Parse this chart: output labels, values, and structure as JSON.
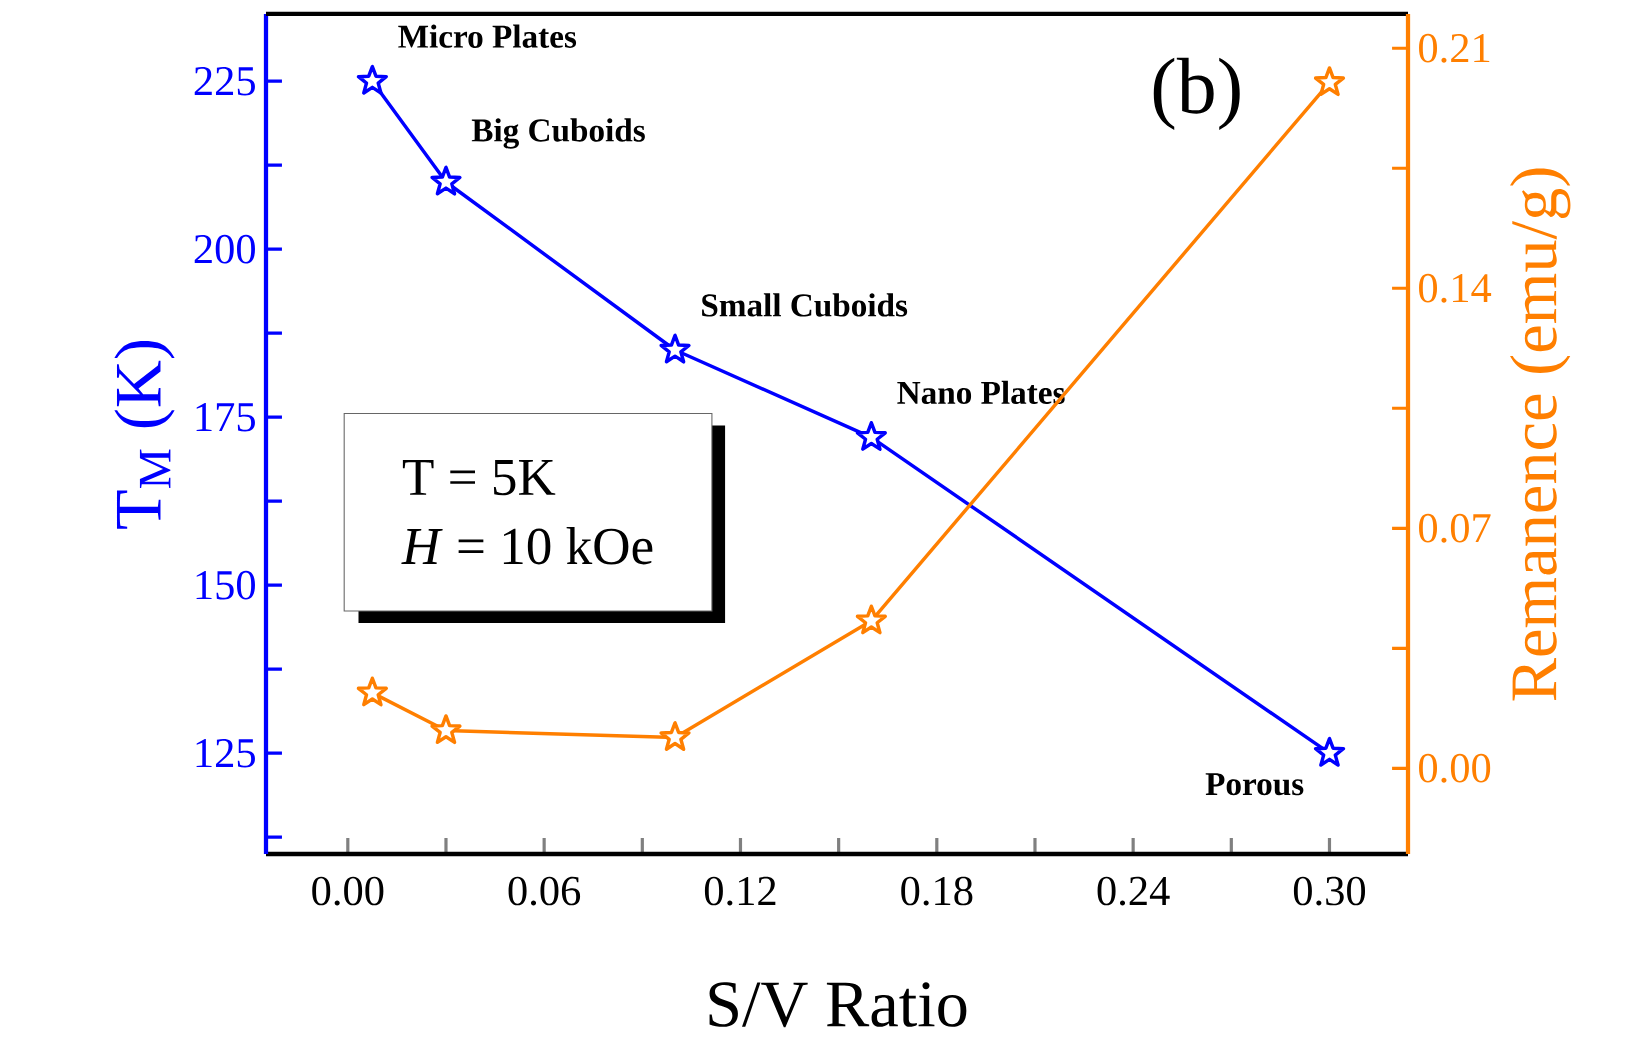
{
  "chart_data": {
    "type": "line",
    "xlabel": "S/V Ratio",
    "ylabel": "T$_{M}$ (K)",
    "y2label": "Remanence (emu/g)",
    "x": [
      0.0075,
      0.03,
      0.1,
      0.16,
      0.3
    ],
    "series": [
      {
        "color": "#0000ff",
        "axis": "y",
        "values": [
          225,
          210,
          185,
          172,
          125
        ]
      },
      {
        "color": "#ff7f00",
        "axis": "y2",
        "values": [
          0.022,
          0.011,
          0.009,
          0.043,
          0.2
        ]
      }
    ],
    "xlim": [
      -0.025,
      0.324
    ],
    "xticks": [
      {
        "value": 0,
        "label": "0.00"
      },
      {
        "value": 0.03,
        "label": null
      },
      0.06,
      {
        "value": 0.09,
        "label": null
      },
      0.12,
      {
        "value": 0.15,
        "label": null
      },
      0.18,
      {
        "value": 0.21,
        "label": null
      },
      0.24,
      {
        "value": 0.27,
        "label": null
      },
      {
        "value": 0.3,
        "label": "0.30"
      }
    ],
    "ylim": [
      110,
      235
    ],
    "yticks": [
      {
        "value": 112.5,
        "label": null
      },
      125,
      {
        "value": 137.5,
        "label": null
      },
      150,
      {
        "value": 162.5,
        "label": null
      },
      175,
      {
        "value": 187.5,
        "label": null
      },
      200,
      {
        "value": 212.5,
        "label": null
      },
      225
    ],
    "y2lim": [
      -0.025,
      0.22
    ],
    "y2ticks": [
      {
        "value": 0,
        "label": "0.00"
      },
      {
        "value": 0.035,
        "label": null
      },
      0.07,
      {
        "value": 0.105,
        "label": null
      },
      0.14,
      {
        "value": 0.175,
        "label": null
      },
      0.21
    ],
    "marker": "star",
    "line_style": "solid",
    "annotations": [
      {
        "text": "Micro Plates",
        "x": 0.0075,
        "y": 225
      },
      {
        "text": "Big Cuboids",
        "x": 0.03,
        "y": 210
      },
      {
        "text": "Small Cuboids",
        "x": 0.1,
        "y": 185
      },
      {
        "text": "Nano Plates",
        "x": 0.16,
        "y": 172
      },
      {
        "text": "Porous",
        "x": 0.3,
        "y": 125
      },
      "(b)",
      "T = 5K",
      "*H* = 10 kOe"
    ]
  }
}
